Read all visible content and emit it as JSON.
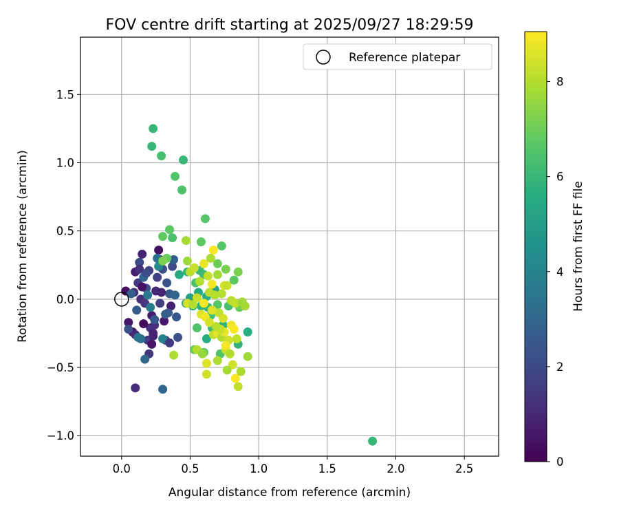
{
  "chart_data": {
    "type": "scatter",
    "title": "FOV centre drift starting at 2025/09/27 18:29:59",
    "xlabel": "Angular distance from reference (arcmin)",
    "ylabel": "Rotation from reference (arcmin)",
    "xlim": [
      -0.3,
      2.75
    ],
    "ylim": [
      -1.15,
      1.92
    ],
    "xticks": [
      0.0,
      0.5,
      1.0,
      1.5,
      2.0,
      2.5
    ],
    "xtick_labels": [
      "0.0",
      "0.5",
      "1.0",
      "1.5",
      "2.0",
      "2.5"
    ],
    "yticks": [
      -1.0,
      -0.5,
      0.0,
      0.5,
      1.0,
      1.5
    ],
    "ytick_labels": [
      "−1.0",
      "−0.5",
      "0.0",
      "0.5",
      "1.0",
      "1.5"
    ],
    "grid": true,
    "legend": {
      "placement": "top-right",
      "entries": [
        {
          "label": "Reference platepar",
          "marker": "open-circle"
        }
      ]
    },
    "reference_point": {
      "x": 0.0,
      "y": 0.0
    },
    "colorbar": {
      "label": "Hours from first FF file",
      "min": 0,
      "max": 9.05,
      "ticks": [
        0,
        2,
        4,
        6,
        8
      ],
      "tick_labels": [
        "0",
        "2",
        "4",
        "6",
        "8"
      ],
      "colormap": "viridis"
    },
    "points": [
      [
        0.03,
        0.06,
        0.3
      ],
      [
        0.05,
        -0.17,
        0.6
      ],
      [
        0.08,
        -0.24,
        0.5
      ],
      [
        0.1,
        -0.26,
        1.0
      ],
      [
        0.09,
        0.05,
        1.2
      ],
      [
        0.12,
        0.12,
        1.5
      ],
      [
        0.1,
        0.2,
        0.8
      ],
      [
        0.13,
        0.27,
        2.0
      ],
      [
        0.15,
        0.33,
        0.9
      ],
      [
        0.14,
        0.0,
        1.1
      ],
      [
        0.17,
        -0.03,
        1.4
      ],
      [
        0.18,
        0.08,
        2.2
      ],
      [
        0.2,
        0.21,
        1.8
      ],
      [
        0.22,
        -0.12,
        0.7
      ],
      [
        0.21,
        -0.21,
        1.3
      ],
      [
        0.19,
        -0.3,
        1.6
      ],
      [
        0.23,
        -0.25,
        0.9
      ],
      [
        0.25,
        0.06,
        1.0
      ],
      [
        0.26,
        0.16,
        1.7
      ],
      [
        0.28,
        0.29,
        1.2
      ],
      [
        0.27,
        0.36,
        0.4
      ],
      [
        0.3,
        0.22,
        2.1
      ],
      [
        0.31,
        -0.16,
        0.6
      ],
      [
        0.32,
        -0.3,
        1.9
      ],
      [
        0.33,
        0.12,
        2.3
      ],
      [
        0.35,
        0.04,
        2.6
      ],
      [
        0.36,
        -0.05,
        0.8
      ],
      [
        0.34,
        -0.1,
        2.5
      ],
      [
        0.37,
        0.24,
        2.0
      ],
      [
        0.38,
        0.29,
        2.8
      ],
      [
        0.4,
        -0.13,
        2.4
      ],
      [
        0.41,
        -0.28,
        2.2
      ],
      [
        0.24,
        -0.19,
        1.2
      ],
      [
        0.22,
        -0.33,
        0.5
      ],
      [
        0.2,
        -0.4,
        1.4
      ],
      [
        0.17,
        -0.44,
        3.0
      ],
      [
        0.14,
        -0.29,
        3.2
      ],
      [
        0.12,
        -0.28,
        3.5
      ],
      [
        0.11,
        -0.08,
        2.6
      ],
      [
        0.16,
        0.16,
        2.9
      ],
      [
        0.19,
        0.03,
        3.6
      ],
      [
        0.21,
        -0.06,
        3.8
      ],
      [
        0.27,
        0.24,
        4.2
      ],
      [
        0.3,
        -0.29,
        4.0
      ],
      [
        0.26,
        0.3,
        3.4
      ],
      [
        0.28,
        -0.03,
        1.7
      ],
      [
        0.1,
        -0.65,
        1.1
      ],
      [
        0.3,
        -0.66,
        3.0
      ],
      [
        0.05,
        -0.22,
        2.2
      ],
      [
        0.07,
        0.04,
        2.7
      ],
      [
        0.13,
        0.22,
        1.3
      ],
      [
        0.16,
        -0.18,
        0.2
      ],
      [
        0.24,
        -0.15,
        2.4
      ],
      [
        0.29,
        0.05,
        0.9
      ],
      [
        0.18,
        0.19,
        2.1
      ],
      [
        0.35,
        -0.32,
        1.5
      ],
      [
        0.39,
        0.03,
        2.9
      ],
      [
        0.23,
        -0.27,
        0.9
      ],
      [
        0.15,
        0.09,
        0.4
      ],
      [
        0.32,
        -0.11,
        2.7
      ],
      [
        0.22,
        1.12,
        6.0
      ],
      [
        0.23,
        1.25,
        6.0
      ],
      [
        0.29,
        1.05,
        6.3
      ],
      [
        0.45,
        1.02,
        6.0
      ],
      [
        0.39,
        0.9,
        6.5
      ],
      [
        0.44,
        0.8,
        6.5
      ],
      [
        0.35,
        0.51,
        6.7
      ],
      [
        0.3,
        0.46,
        6.8
      ],
      [
        0.37,
        0.45,
        6.4
      ],
      [
        0.61,
        0.59,
        6.6
      ],
      [
        0.58,
        0.42,
        6.8
      ],
      [
        0.73,
        0.39,
        6.6
      ],
      [
        0.7,
        0.26,
        7.0
      ],
      [
        0.76,
        0.22,
        7.2
      ],
      [
        0.85,
        0.2,
        7.2
      ],
      [
        0.82,
        0.14,
        6.7
      ],
      [
        0.6,
        0.18,
        6.2
      ],
      [
        0.54,
        0.12,
        6.4
      ],
      [
        0.48,
        0.2,
        6.0
      ],
      [
        0.52,
        -0.05,
        5.6
      ],
      [
        0.55,
        -0.21,
        6.5
      ],
      [
        0.58,
        -0.05,
        5.8
      ],
      [
        0.63,
        -0.06,
        6.0
      ],
      [
        0.66,
        -0.21,
        6.2
      ],
      [
        0.7,
        -0.04,
        6.6
      ],
      [
        0.74,
        -0.19,
        5.8
      ],
      [
        0.78,
        -0.05,
        6.3
      ],
      [
        0.85,
        -0.33,
        5.9
      ],
      [
        0.92,
        -0.24,
        5.6
      ],
      [
        0.86,
        -0.06,
        7.0
      ],
      [
        0.53,
        -0.37,
        6.9
      ],
      [
        0.6,
        -0.39,
        6.7
      ],
      [
        0.72,
        -0.4,
        6.5
      ],
      [
        0.42,
        0.18,
        5.5
      ],
      [
        0.47,
        -0.03,
        5.2
      ],
      [
        0.5,
        0.01,
        5.0
      ],
      [
        0.56,
        0.05,
        5.5
      ],
      [
        0.62,
        0.02,
        5.7
      ],
      [
        0.68,
        0.07,
        5.2
      ],
      [
        0.33,
        0.3,
        6.9
      ],
      [
        1.83,
        -1.04,
        6.0
      ],
      [
        0.3,
        0.28,
        7.2
      ],
      [
        0.62,
        -0.29,
        5.6
      ],
      [
        0.57,
        0.21,
        6.1
      ],
      [
        0.65,
        -0.12,
        6.3
      ],
      [
        0.47,
        0.43,
        7.8
      ],
      [
        0.48,
        0.28,
        7.7
      ],
      [
        0.5,
        0.2,
        8.1
      ],
      [
        0.53,
        0.23,
        8.3
      ],
      [
        0.57,
        0.13,
        8.0
      ],
      [
        0.6,
        0.26,
        8.8
      ],
      [
        0.63,
        0.17,
        8.2
      ],
      [
        0.65,
        0.3,
        7.9
      ],
      [
        0.67,
        0.36,
        9.0
      ],
      [
        0.7,
        0.18,
        7.8
      ],
      [
        0.73,
        0.04,
        8.0
      ],
      [
        0.75,
        0.1,
        8.5
      ],
      [
        0.77,
        0.1,
        8.3
      ],
      [
        0.8,
        -0.01,
        8.1
      ],
      [
        0.83,
        -0.03,
        8.2
      ],
      [
        0.88,
        -0.02,
        7.7
      ],
      [
        0.9,
        -0.05,
        7.8
      ],
      [
        0.48,
        -0.03,
        8.5
      ],
      [
        0.52,
        -0.04,
        8.0
      ],
      [
        0.55,
        0.01,
        8.3
      ],
      [
        0.58,
        -0.11,
        8.6
      ],
      [
        0.61,
        -0.13,
        8.9
      ],
      [
        0.64,
        -0.17,
        8.5
      ],
      [
        0.67,
        -0.26,
        8.2
      ],
      [
        0.7,
        -0.25,
        8.7
      ],
      [
        0.73,
        -0.28,
        8.0
      ],
      [
        0.75,
        -0.24,
        8.8
      ],
      [
        0.78,
        -0.3,
        8.4
      ],
      [
        0.8,
        -0.19,
        8.9
      ],
      [
        0.82,
        -0.22,
        9.0
      ],
      [
        0.84,
        -0.29,
        8.2
      ],
      [
        0.76,
        -0.37,
        8.3
      ],
      [
        0.79,
        -0.4,
        8.0
      ],
      [
        0.81,
        -0.48,
        8.4
      ],
      [
        0.83,
        -0.58,
        9.0
      ],
      [
        0.85,
        -0.64,
        8.2
      ],
      [
        0.87,
        -0.53,
        7.9
      ],
      [
        0.92,
        -0.42,
        7.7
      ],
      [
        0.77,
        -0.52,
        7.8
      ],
      [
        0.7,
        -0.45,
        7.9
      ],
      [
        0.62,
        -0.47,
        8.6
      ],
      [
        0.62,
        -0.55,
        8.4
      ],
      [
        0.55,
        -0.37,
        8.0
      ],
      [
        0.59,
        -0.4,
        7.6
      ],
      [
        0.38,
        -0.41,
        7.9
      ],
      [
        0.6,
        -0.03,
        9.0
      ],
      [
        0.64,
        0.05,
        8.1
      ],
      [
        0.66,
        0.11,
        8.9
      ],
      [
        0.68,
        0.03,
        8.0
      ],
      [
        0.71,
        -0.1,
        8.2
      ],
      [
        0.74,
        -0.14,
        8.5
      ],
      [
        0.76,
        -0.34,
        8.9
      ],
      [
        0.72,
        -0.22,
        8.3
      ],
      [
        0.66,
        -0.08,
        8.6
      ],
      [
        0.69,
        -0.2,
        8.1
      ]
    ]
  }
}
